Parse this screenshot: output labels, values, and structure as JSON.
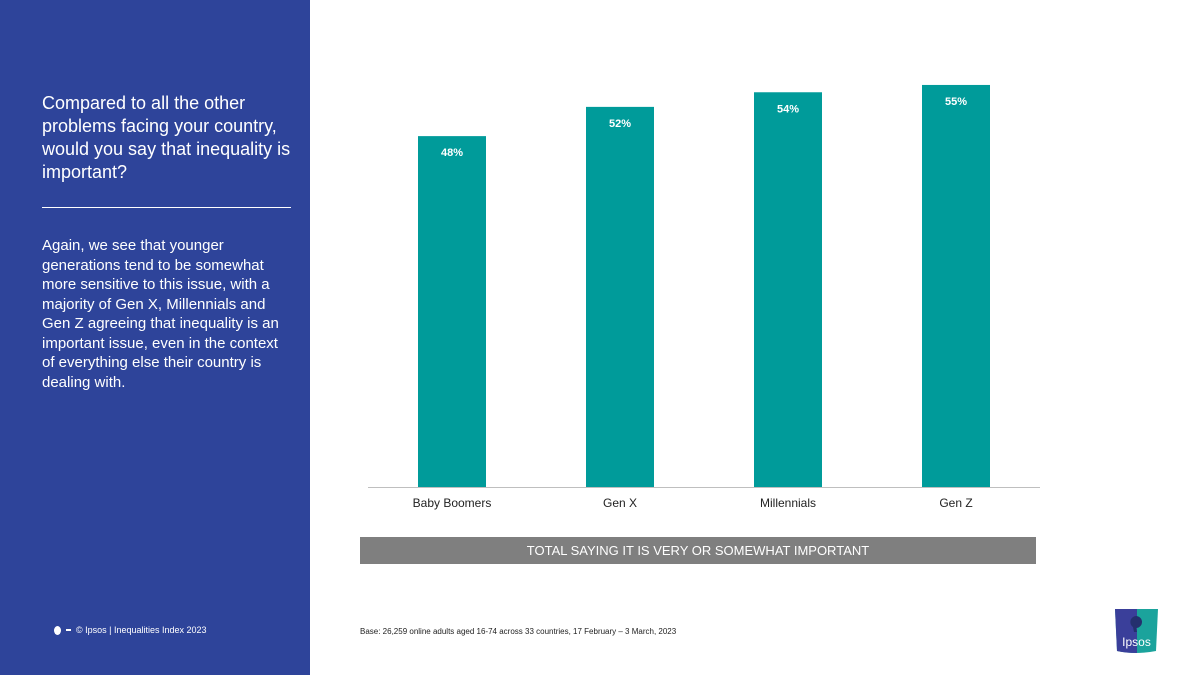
{
  "sidebar": {
    "question": "Compared to all the other problems facing your country, would you say that inequality is important?",
    "body": "Again, we see that younger generations tend to be somewhat more sensitive to this issue, with a majority of Gen X, Millennials and Gen Z agreeing that inequality is an important issue, even in the context of everything else their country is dealing with.",
    "footer": "© Ipsos | Inequalities Index 2023"
  },
  "caption": "TOTAL SAYING IT IS VERY OR SOMEWHAT IMPORTANT",
  "base_note": "Base: 26,259 online adults aged 16-74 across 33 countries, 17 February – 3 March, 2023",
  "logo_text": "Ipsos",
  "colors": {
    "sidebar": "#2E449A",
    "bar": "#009B9A",
    "caption_bg": "#7F7F7F"
  },
  "chart_data": {
    "type": "bar",
    "categories": [
      "Baby Boomers",
      "Gen X",
      "Millennials",
      "Gen Z"
    ],
    "values": [
      48,
      52,
      54,
      55
    ],
    "labels": [
      "48%",
      "52%",
      "54%",
      "55%"
    ],
    "ylim": [
      0,
      60
    ],
    "grid": false,
    "unit": "%"
  }
}
